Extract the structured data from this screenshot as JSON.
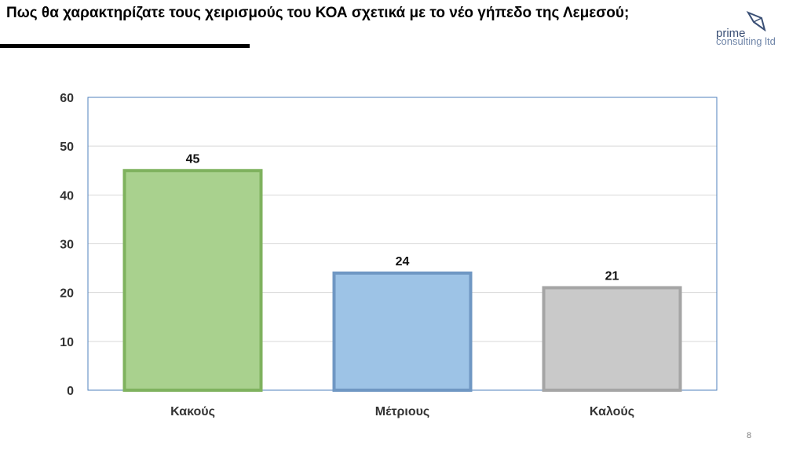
{
  "header": {
    "title": "Πως θα χαρακτηρίζατε τους χειρισμούς του ΚΟΑ σχετικά με το νέο γήπεδο της Λεμεσού;"
  },
  "logo": {
    "line1": "prime",
    "line2": "consulting ltd",
    "color": "#3a4f75"
  },
  "page_number": "8",
  "chart_data": {
    "type": "bar",
    "title": "",
    "xlabel": "",
    "ylabel": "",
    "categories": [
      "Κακούς",
      "Μέτριους",
      "Καλούς"
    ],
    "values": [
      45,
      24,
      21
    ],
    "ylim": [
      0,
      60
    ],
    "yticks": [
      0,
      10,
      20,
      30,
      40,
      50,
      60
    ],
    "grid": true,
    "legend": "none",
    "bar_colors": [
      {
        "fill": "#a9d18e",
        "stroke": "#7fb25e"
      },
      {
        "fill": "#9dc3e6",
        "stroke": "#6f97c3"
      },
      {
        "fill": "#c9c9c9",
        "stroke": "#a5a5a5"
      }
    ],
    "plot_border_color": "#4f81bd",
    "gridline_color": "#d9d9d9"
  }
}
